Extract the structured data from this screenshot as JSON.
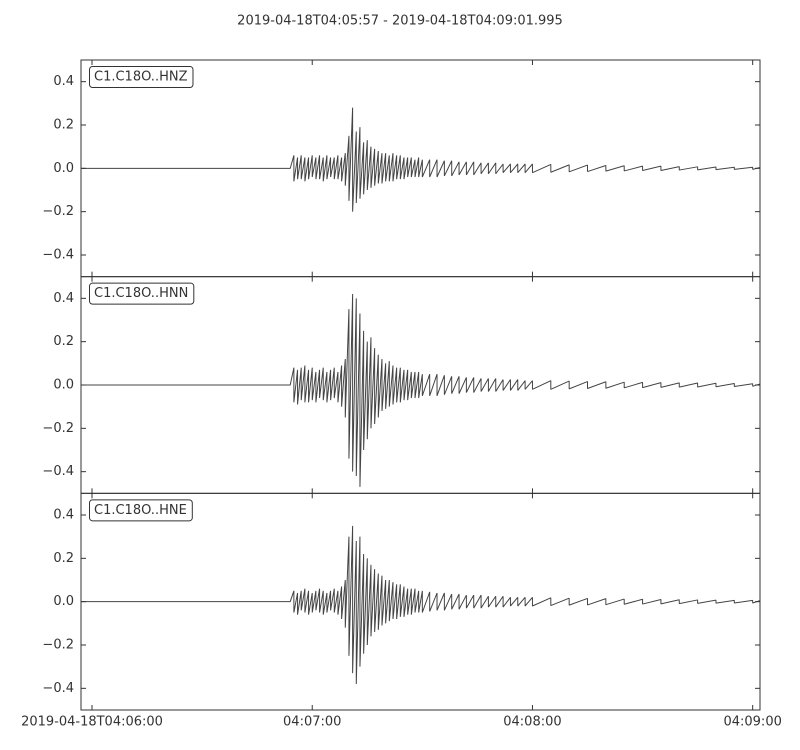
{
  "chart_data": {
    "type": "line",
    "title": "2019-04-18T04:05:57  -  2019-04-18T04:09:01.995",
    "xlim": [
      "2019-04-18T04:05:57",
      "2019-04-18T04:09:01.995"
    ],
    "xticks": [
      {
        "value": "2019-04-18T04:06:00",
        "label": "2019-04-18T04:06:00"
      },
      {
        "value": "2019-04-18T04:07:00",
        "label": "04:07:00"
      },
      {
        "value": "2019-04-18T04:08:00",
        "label": "04:08:00"
      },
      {
        "value": "2019-04-18T04:09:00",
        "label": "04:09:00"
      }
    ],
    "ylim": [
      -0.5,
      0.5
    ],
    "yticks": [
      {
        "value": -0.4,
        "label": "−0.4"
      },
      {
        "value": -0.2,
        "label": "−0.2"
      },
      {
        "value": 0,
        "label": "0.0"
      },
      0.2,
      0.4
    ],
    "x": [
      "2019-04-18T04:05:57",
      "2019-04-18T04:06:54",
      "2019-04-18T04:06:55",
      "2019-04-18T04:06:56",
      "2019-04-18T04:06:57",
      "2019-04-18T04:06:58",
      "2019-04-18T04:06:59",
      "2019-04-18T04:07:00",
      "2019-04-18T04:07:01",
      "2019-04-18T04:07:02",
      "2019-04-18T04:07:03",
      "2019-04-18T04:07:04",
      "2019-04-18T04:07:05",
      "2019-04-18T04:07:06",
      "2019-04-18T04:07:07",
      "2019-04-18T04:07:08",
      "2019-04-18T04:07:09",
      "2019-04-18T04:07:10",
      "2019-04-18T04:07:11",
      "2019-04-18T04:07:12",
      "2019-04-18T04:07:13",
      "2019-04-18T04:07:14",
      "2019-04-18T04:07:15",
      "2019-04-18T04:07:16",
      "2019-04-18T04:07:17",
      "2019-04-18T04:07:18",
      "2019-04-18T04:07:19",
      "2019-04-18T04:07:20",
      "2019-04-18T04:07:21",
      "2019-04-18T04:07:22",
      "2019-04-18T04:07:23",
      "2019-04-18T04:07:24",
      "2019-04-18T04:07:25",
      "2019-04-18T04:07:26",
      "2019-04-18T04:07:27",
      "2019-04-18T04:07:28",
      "2019-04-18T04:07:29",
      "2019-04-18T04:07:30",
      "2019-04-18T04:07:32",
      "2019-04-18T04:07:34",
      "2019-04-18T04:07:36",
      "2019-04-18T04:07:38",
      "2019-04-18T04:07:40",
      "2019-04-18T04:07:42",
      "2019-04-18T04:07:44",
      "2019-04-18T04:07:46",
      "2019-04-18T04:07:48",
      "2019-04-18T04:07:50",
      "2019-04-18T04:07:52",
      "2019-04-18T04:07:54",
      "2019-04-18T04:07:56",
      "2019-04-18T04:07:58",
      "2019-04-18T04:08:00",
      "2019-04-18T04:08:05",
      "2019-04-18T04:08:10",
      "2019-04-18T04:08:15",
      "2019-04-18T04:08:20",
      "2019-04-18T04:08:25",
      "2019-04-18T04:08:30",
      "2019-04-18T04:08:35",
      "2019-04-18T04:08:40",
      "2019-04-18T04:08:45",
      "2019-04-18T04:08:50",
      "2019-04-18T04:08:55",
      "2019-04-18T04:09:00",
      "2019-04-18T04:09:01.995"
    ],
    "series": [
      {
        "name": "C1.C18O..HNZ",
        "color": "#444444",
        "max": [
          0,
          0,
          0.06,
          0.05,
          0.06,
          0.05,
          0.05,
          0.06,
          0.05,
          0.06,
          0.05,
          0.06,
          0.05,
          0.05,
          0.06,
          0.05,
          0.07,
          0.15,
          0.28,
          0.17,
          0.19,
          0.12,
          0.13,
          0.1,
          0.09,
          0.08,
          0.07,
          0.07,
          0.06,
          0.07,
          0.06,
          0.06,
          0.05,
          0.05,
          0.05,
          0.04,
          0.05,
          0.04,
          0.04,
          0.04,
          0.035,
          0.035,
          0.03,
          0.03,
          0.03,
          0.025,
          0.025,
          0.025,
          0.02,
          0.02,
          0.02,
          0.02,
          0.02,
          0.018,
          0.016,
          0.015,
          0.013,
          0.012,
          0.01,
          0.01,
          0.008,
          0.007,
          0.006,
          0.005,
          0.005,
          0.004
        ],
        "min": [
          0,
          0,
          -0.06,
          -0.05,
          -0.05,
          -0.06,
          -0.05,
          -0.04,
          -0.05,
          -0.05,
          -0.06,
          -0.05,
          -0.04,
          -0.05,
          -0.05,
          -0.06,
          -0.08,
          -0.15,
          -0.2,
          -0.16,
          -0.14,
          -0.12,
          -0.1,
          -0.09,
          -0.08,
          -0.07,
          -0.07,
          -0.06,
          -0.06,
          -0.06,
          -0.05,
          -0.05,
          -0.05,
          -0.04,
          -0.04,
          -0.04,
          -0.04,
          -0.04,
          -0.04,
          -0.04,
          -0.035,
          -0.035,
          -0.03,
          -0.03,
          -0.03,
          -0.025,
          -0.025,
          -0.025,
          -0.02,
          -0.02,
          -0.02,
          -0.02,
          -0.02,
          -0.018,
          -0.016,
          -0.015,
          -0.013,
          -0.012,
          -0.01,
          -0.01,
          -0.008,
          -0.007,
          -0.006,
          -0.005,
          -0.005,
          -0.004
        ]
      },
      {
        "name": "C1.C18O..HNN",
        "color": "#444444",
        "max": [
          0,
          0,
          0.08,
          0.07,
          0.08,
          0.09,
          0.07,
          0.08,
          0.06,
          0.07,
          0.08,
          0.06,
          0.07,
          0.08,
          0.06,
          0.09,
          0.12,
          0.35,
          0.42,
          0.4,
          0.33,
          0.25,
          0.2,
          0.22,
          0.17,
          0.14,
          0.12,
          0.1,
          0.11,
          0.09,
          0.08,
          0.08,
          0.07,
          0.07,
          0.06,
          0.06,
          0.06,
          0.05,
          0.05,
          0.05,
          0.045,
          0.04,
          0.04,
          0.035,
          0.035,
          0.03,
          0.03,
          0.03,
          0.025,
          0.025,
          0.025,
          0.02,
          0.02,
          0.02,
          0.018,
          0.016,
          0.015,
          0.013,
          0.012,
          0.011,
          0.01,
          0.009,
          0.008,
          0.007,
          0.006,
          0.005
        ],
        "min": [
          0,
          0,
          -0.08,
          -0.09,
          -0.07,
          -0.08,
          -0.08,
          -0.07,
          -0.08,
          -0.06,
          -0.07,
          -0.08,
          -0.07,
          -0.06,
          -0.08,
          -0.1,
          -0.15,
          -0.34,
          -0.4,
          -0.42,
          -0.47,
          -0.3,
          -0.25,
          -0.2,
          -0.18,
          -0.15,
          -0.12,
          -0.11,
          -0.1,
          -0.09,
          -0.08,
          -0.08,
          -0.07,
          -0.07,
          -0.06,
          -0.06,
          -0.06,
          -0.05,
          -0.05,
          -0.05,
          -0.045,
          -0.04,
          -0.04,
          -0.035,
          -0.035,
          -0.03,
          -0.03,
          -0.03,
          -0.025,
          -0.025,
          -0.025,
          -0.02,
          -0.02,
          -0.02,
          -0.018,
          -0.016,
          -0.015,
          -0.013,
          -0.012,
          -0.011,
          -0.01,
          -0.009,
          -0.008,
          -0.007,
          -0.006,
          -0.005
        ]
      },
      {
        "name": "C1.C18O..HNE",
        "color": "#444444",
        "max": [
          0,
          0,
          0.05,
          0.04,
          0.05,
          0.06,
          0.05,
          0.04,
          0.05,
          0.06,
          0.05,
          0.04,
          0.05,
          0.06,
          0.05,
          0.07,
          0.1,
          0.3,
          0.35,
          0.28,
          0.3,
          0.22,
          0.2,
          0.17,
          0.15,
          0.13,
          0.12,
          0.1,
          0.1,
          0.09,
          0.08,
          0.08,
          0.07,
          0.06,
          0.06,
          0.06,
          0.05,
          0.05,
          0.045,
          0.04,
          0.04,
          0.035,
          0.035,
          0.03,
          0.03,
          0.03,
          0.025,
          0.025,
          0.025,
          0.02,
          0.02,
          0.02,
          0.02,
          0.018,
          0.016,
          0.015,
          0.014,
          0.012,
          0.011,
          0.01,
          0.009,
          0.008,
          0.007,
          0.006,
          0.006,
          0.005
        ],
        "min": [
          0,
          0,
          -0.05,
          -0.06,
          -0.04,
          -0.05,
          -0.06,
          -0.05,
          -0.04,
          -0.05,
          -0.06,
          -0.05,
          -0.04,
          -0.05,
          -0.06,
          -0.08,
          -0.12,
          -0.25,
          -0.33,
          -0.38,
          -0.3,
          -0.24,
          -0.2,
          -0.16,
          -0.14,
          -0.13,
          -0.11,
          -0.1,
          -0.09,
          -0.08,
          -0.08,
          -0.07,
          -0.07,
          -0.06,
          -0.06,
          -0.05,
          -0.05,
          -0.05,
          -0.045,
          -0.04,
          -0.04,
          -0.035,
          -0.035,
          -0.03,
          -0.03,
          -0.03,
          -0.025,
          -0.025,
          -0.025,
          -0.02,
          -0.02,
          -0.02,
          -0.02,
          -0.018,
          -0.016,
          -0.015,
          -0.014,
          -0.012,
          -0.011,
          -0.01,
          -0.009,
          -0.008,
          -0.007,
          -0.006,
          -0.006,
          -0.005
        ]
      }
    ]
  }
}
